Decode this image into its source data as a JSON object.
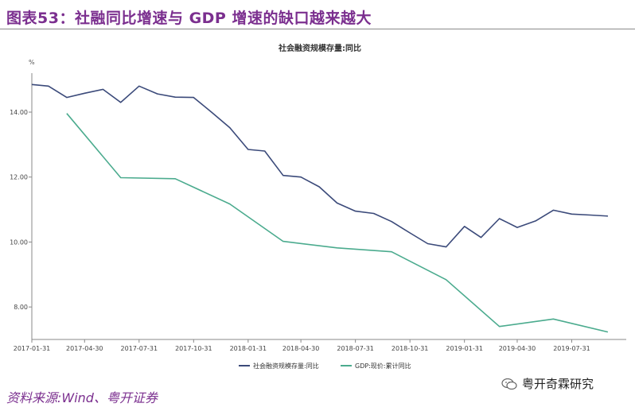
{
  "header": {
    "figure_no": "图表53：",
    "title": "社融同比增速与 GDP 增速的缺口越来越大"
  },
  "chart_data": {
    "type": "line",
    "title": "社会融资规模存量:同比",
    "ylabel": "%",
    "ylim": [
      7.0,
      15.2
    ],
    "yticks": [
      8.0,
      10.0,
      12.0,
      14.0
    ],
    "ytick_labels": [
      "8.00",
      "10.00",
      "12.00",
      "14.00"
    ],
    "x_range": [
      "2017-01-31",
      "2019-10-31"
    ],
    "xticks": [
      "2017-01-31",
      "2017-04-30",
      "2017-07-31",
      "2017-10-31",
      "2018-01-31",
      "2018-04-30",
      "2018-07-31",
      "2018-10-31",
      "2019-01-31",
      "2019-04-30",
      "2019-07-31"
    ],
    "series": [
      {
        "name": "社会融资规模存量:同比",
        "color": "#3b4a7a",
        "dates": [
          "2017-01-31",
          "2017-02-28",
          "2017-03-31",
          "2017-04-30",
          "2017-05-31",
          "2017-06-30",
          "2017-07-31",
          "2017-08-31",
          "2017-09-30",
          "2017-10-31",
          "2017-11-30",
          "2017-12-31",
          "2018-01-31",
          "2018-02-28",
          "2018-03-31",
          "2018-04-30",
          "2018-05-31",
          "2018-06-30",
          "2018-07-31",
          "2018-08-31",
          "2018-09-30",
          "2018-10-31",
          "2018-11-30",
          "2018-12-31",
          "2019-01-31",
          "2019-02-28",
          "2019-03-31",
          "2019-04-30",
          "2019-05-31",
          "2019-06-30",
          "2019-07-31",
          "2019-08-31",
          "2019-09-30"
        ],
        "values": [
          14.85,
          14.8,
          14.45,
          14.58,
          14.7,
          14.3,
          14.8,
          14.56,
          14.46,
          14.45,
          14.0,
          13.52,
          12.85,
          12.8,
          12.05,
          12.0,
          11.7,
          11.2,
          10.95,
          10.88,
          10.63,
          10.28,
          9.95,
          9.85,
          10.48,
          10.14,
          10.72,
          10.45,
          10.65,
          10.98,
          10.86,
          10.83,
          10.8
        ]
      },
      {
        "name": "GDP:现价:累计同比",
        "color": "#4bab8e",
        "dates": [
          "2017-03-31",
          "2017-06-30",
          "2017-09-30",
          "2017-12-31",
          "2018-03-31",
          "2018-06-30",
          "2018-09-30",
          "2018-12-31",
          "2019-03-31",
          "2019-06-30",
          "2019-09-30"
        ],
        "values": [
          13.96,
          11.98,
          11.95,
          11.17,
          10.02,
          9.82,
          9.7,
          8.84,
          7.4,
          7.63,
          7.23
        ]
      }
    ],
    "legend_position": "bottom-center",
    "grid": false
  },
  "source": "资料来源:Wind、粤开证券",
  "brand": {
    "icon": "wechat-icon",
    "name": "粤开奇霖研究"
  }
}
